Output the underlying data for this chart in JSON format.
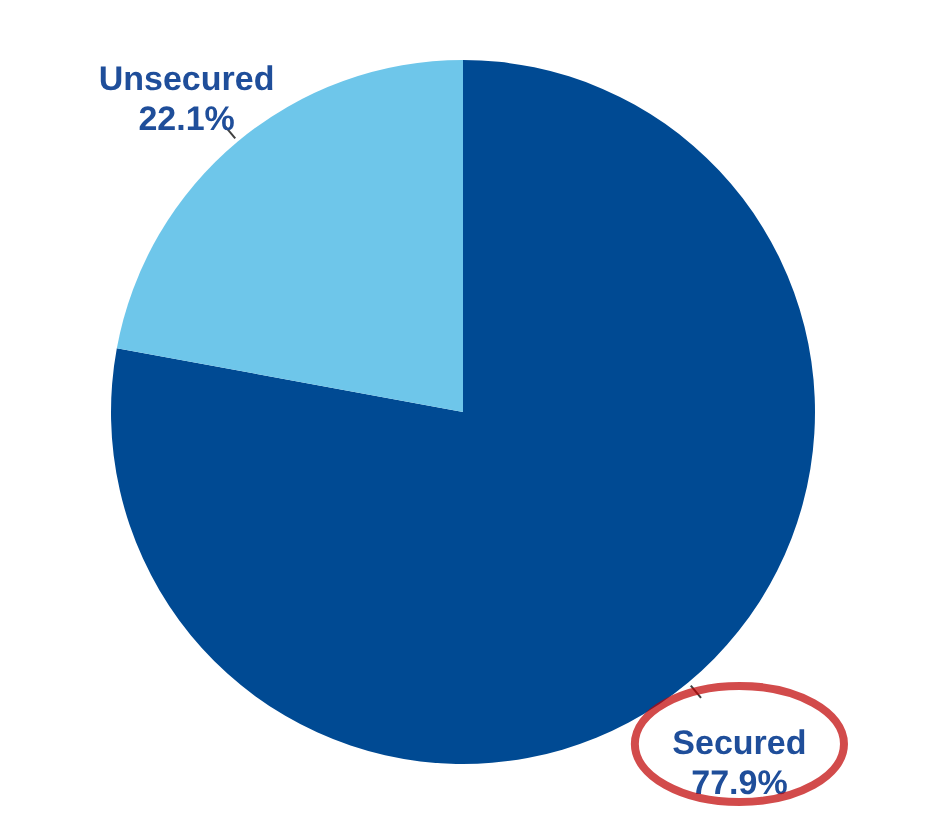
{
  "chart_data": {
    "type": "pie",
    "categories": [
      "Secured",
      "Unsecured"
    ],
    "values": [
      77.9,
      22.1
    ],
    "colors": [
      "#004a93",
      "#6ec6ea"
    ],
    "value_labels": [
      "77.9%",
      "22.1%"
    ]
  }
}
